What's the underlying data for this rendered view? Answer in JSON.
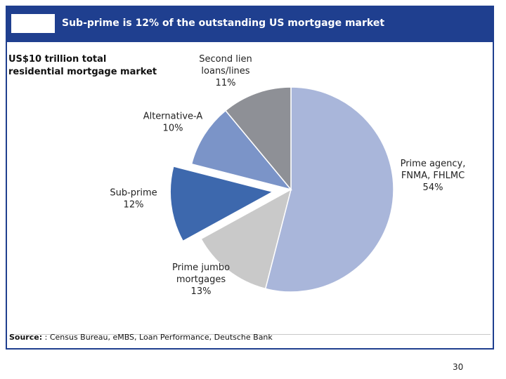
{
  "header": {
    "title": "Sub-prime is 12% of the outstanding US mortgage market"
  },
  "subtitle": {
    "line1": "US$10 trillion total",
    "line2": "residential mortgage market"
  },
  "source": {
    "label": "Source:",
    "text": " : Census Bureau, eMBS, Loan Performance, Deutsche Bank"
  },
  "page_number": "30",
  "chart_data": {
    "type": "pie",
    "title": "Sub-prime is 12% of the outstanding US mortgage market",
    "subtitle": "US$10 trillion total residential mortgage market",
    "start_angle_deg": 0,
    "direction": "clockwise",
    "slices": [
      {
        "label_lines": [
          "Prime agency,",
          "FNMA, FHLMC",
          "54%"
        ],
        "value": 54,
        "color": "#a9b6da",
        "exploded": false
      },
      {
        "label_lines": [
          "Prime jumbo",
          "mortgages",
          "13%"
        ],
        "value": 13,
        "color": "#c9c9c9",
        "exploded": false
      },
      {
        "label_lines": [
          "Sub-prime",
          "12%"
        ],
        "value": 12,
        "color": "#3d68ad",
        "exploded": true
      },
      {
        "label_lines": [
          "Alternative-A",
          "10%"
        ],
        "value": 10,
        "color": "#7b94c8",
        "exploded": false
      },
      {
        "label_lines": [
          "Second lien",
          "loans/lines",
          "11%"
        ],
        "value": 11,
        "color": "#8e9096",
        "exploded": false
      }
    ]
  }
}
